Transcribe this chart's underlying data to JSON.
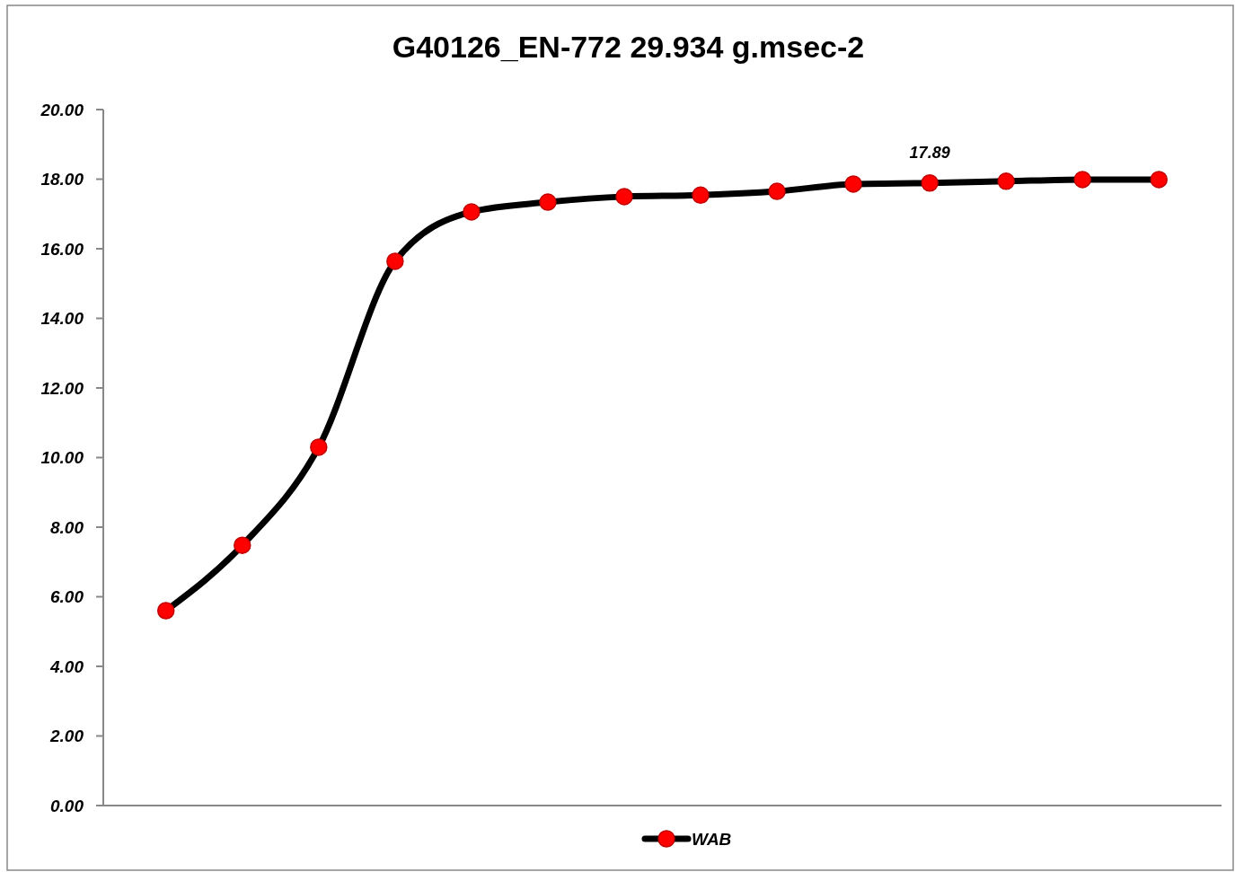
{
  "chart_data": {
    "type": "line",
    "title": "G40126_EN-772 29.934 g.msec-2",
    "categories": [
      null,
      null,
      null,
      null,
      null,
      null,
      null,
      null,
      null,
      null,
      null,
      null,
      null,
      null
    ],
    "series": [
      {
        "name": "WAB",
        "color": "#000000",
        "values": [
          5.6,
          7.48,
          10.3,
          15.64,
          17.06,
          17.34,
          17.5,
          17.54,
          17.65,
          17.86,
          17.89,
          17.94,
          17.99,
          17.99
        ],
        "value_labels": [
          null,
          null,
          null,
          null,
          null,
          null,
          null,
          null,
          null,
          null,
          "17.89",
          null,
          null,
          null
        ]
      }
    ],
    "ylim": [
      0,
      20
    ],
    "yticks": [
      {
        "value": 0,
        "label": "0.00"
      },
      {
        "value": 2,
        "label": "2.00"
      },
      {
        "value": 4,
        "label": "4.00"
      },
      {
        "value": 6,
        "label": "6.00"
      },
      {
        "value": 8,
        "label": "8.00"
      },
      {
        "value": 10,
        "label": "10.00"
      },
      {
        "value": 12,
        "label": "12.00"
      },
      {
        "value": 14,
        "label": "14.00"
      },
      {
        "value": 16,
        "label": "16.00"
      },
      {
        "value": 18,
        "label": "18.00"
      },
      {
        "value": 20,
        "label": "20.00"
      }
    ],
    "grid": false,
    "legend": "bottom",
    "marker": "circle",
    "line_style": "solid"
  }
}
